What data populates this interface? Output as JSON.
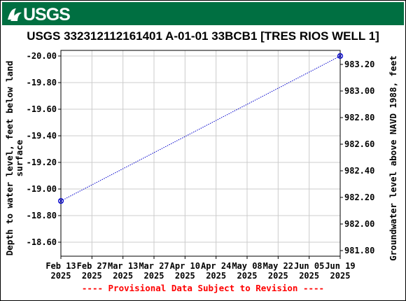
{
  "header": {
    "logo_text": "USGS",
    "logo_icon": "usgs-wave-icon",
    "background_color": "#006f41"
  },
  "chart_data": {
    "type": "line",
    "title": "USGS 332312112161401 A-01-01 33BCB1 [TRES RIOS WELL 1]",
    "ylabel_left": [
      "Depth to water level, feet below land",
      "surface"
    ],
    "ylabel_right": "Groundwater level above NAVD 1988, feet",
    "x_ticks": [
      {
        "date": "2025-02-13",
        "line1": "Feb 13",
        "line2": "2025"
      },
      {
        "date": "2025-02-27",
        "line1": "Feb 27",
        "line2": "2025"
      },
      {
        "date": "2025-03-13",
        "line1": "Mar 13",
        "line2": "2025"
      },
      {
        "date": "2025-03-27",
        "line1": "Mar 27",
        "line2": "2025"
      },
      {
        "date": "2025-04-10",
        "line1": "Apr 10",
        "line2": "2025"
      },
      {
        "date": "2025-04-24",
        "line1": "Apr 24",
        "line2": "2025"
      },
      {
        "date": "2025-05-08",
        "line1": "May 08",
        "line2": "2025"
      },
      {
        "date": "2025-05-22",
        "line1": "May 22",
        "line2": "2025"
      },
      {
        "date": "2025-06-05",
        "line1": "Jun 05",
        "line2": "2025"
      },
      {
        "date": "2025-06-19",
        "line1": "Jun 19",
        "line2": "2025"
      }
    ],
    "y_left_ticks": [
      "-20.00",
      "-19.80",
      "-19.60",
      "-19.40",
      "-19.20",
      "-19.00",
      "-18.80",
      "-18.60"
    ],
    "y_left_values": [
      -20.0,
      -19.8,
      -19.6,
      -19.4,
      -19.2,
      -19.0,
      -18.8,
      -18.6
    ],
    "y_left_range": [
      -20.0,
      -18.48
    ],
    "y_right_ticks": [
      "983.20",
      "983.00",
      "982.80",
      "982.60",
      "982.40",
      "982.20",
      "982.00",
      "981.80"
    ],
    "y_right_values": [
      983.2,
      983.0,
      982.8,
      982.6,
      982.4,
      982.2,
      982.0,
      981.8
    ],
    "y_right_range": [
      983.26,
      981.78
    ],
    "x_range": [
      "2025-02-13",
      "2025-06-19"
    ],
    "grid": true,
    "series": [
      {
        "points": [
          {
            "date": "2025-02-13",
            "depth": -18.91
          },
          {
            "date": "2025-06-19",
            "depth": -20.0
          }
        ],
        "color": "#0000cc"
      }
    ],
    "footnote": "---- Provisional Data Subject to Revision ----",
    "footnote_color": "#ff0000"
  }
}
